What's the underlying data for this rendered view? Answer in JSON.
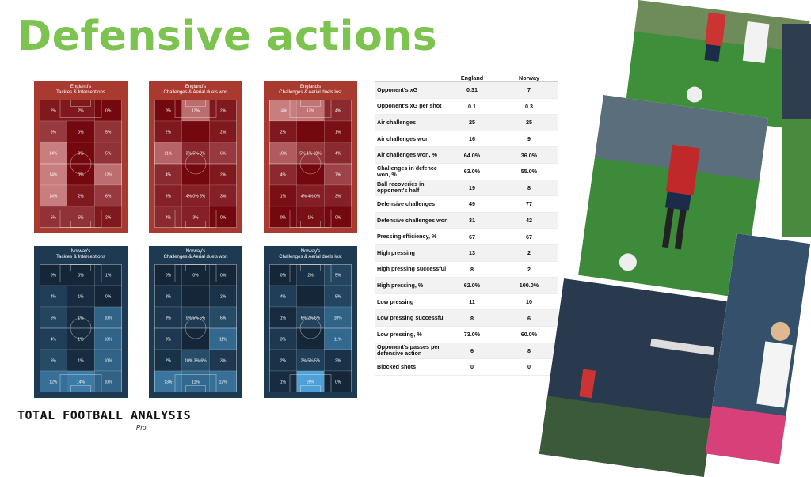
{
  "title": "Defensive actions",
  "panels": {
    "eng1": {
      "title": "England's\nTackles & Interceptions",
      "cells": [
        "2%",
        "2%",
        "0%",
        "6%",
        "0%",
        "5%",
        "14%",
        "0%",
        "5%",
        "14%",
        "0%",
        "12%",
        "14%",
        "2%",
        "6%",
        "5%",
        "5%",
        "2%"
      ]
    },
    "eng2": {
      "title": "England's\nChallenges & Aerial duels won",
      "cells": [
        "0%",
        "12%",
        "2%",
        "2%",
        "",
        "2%",
        "11%",
        "3% 5% 3%",
        "6%",
        "4%",
        "",
        "2%",
        "3%",
        "4% 0% 5%",
        "3%",
        "4%",
        "3%",
        "0%"
      ]
    },
    "eng3": {
      "title": "England's\nChallenges & Aerial duels lost",
      "cells": [
        "14%",
        "13%",
        "4%",
        "2%",
        "",
        "1%",
        "10%",
        "5% 1% 10%",
        "4%",
        "4%",
        "",
        "7%",
        "1%",
        "4% 4% 0%",
        "3%",
        "0%",
        "1%",
        "0%"
      ]
    },
    "nor1": {
      "title": "Norway's\nTackles & Interceptions",
      "cells": [
        "0%",
        "0%",
        "1%",
        "4%",
        "1%",
        "0%",
        "5%",
        "1%",
        "10%",
        "4%",
        "1%",
        "10%",
        "6%",
        "1%",
        "10%",
        "12%",
        "14%",
        "10%"
      ]
    },
    "nor2": {
      "title": "Norway's\nChallenges & Aerial duels won",
      "cells": [
        "0%",
        "0%",
        "0%",
        "2%",
        "",
        "2%",
        "3%",
        "0% 5% 5%",
        "6%",
        "3%",
        "",
        "11%",
        "2%",
        "10% 3% 6%",
        "3%",
        "13%",
        "11%",
        "12%"
      ]
    },
    "nor3": {
      "title": "Norway's\nChallenges & Aerial duels lost",
      "cells": [
        "0%",
        "2%",
        "5%",
        "4%",
        "",
        "5%",
        "1%",
        "6% 2% 6%",
        "10%",
        "3%",
        "",
        "11%",
        "2%",
        "2% 5% 5%",
        "2%",
        "1%",
        "20%",
        "0%"
      ]
    }
  },
  "stats": {
    "col_england": "England",
    "col_norway": "Norway",
    "rows": [
      {
        "label": "Opponent's xG",
        "eng": "0.31",
        "nor": "7"
      },
      {
        "label": "Opponent's xG per shot",
        "eng": "0.1",
        "nor": "0.3"
      },
      {
        "label": "Air challenges",
        "eng": "25",
        "nor": "25"
      },
      {
        "label": "Air challenges won",
        "eng": "16",
        "nor": "9"
      },
      {
        "label": "Air challenges won, %",
        "eng": "64.0%",
        "nor": "36.0%"
      },
      {
        "label": "Challenges in defence won, %",
        "eng": "63.0%",
        "nor": "55.0%"
      },
      {
        "label": "Ball recoveries in opponent's half",
        "eng": "19",
        "nor": "8"
      },
      {
        "label": "Defensive challenges",
        "eng": "49",
        "nor": "77"
      },
      {
        "label": "Defensive challenges won",
        "eng": "31",
        "nor": "42"
      },
      {
        "label": "Pressing efficiency, %",
        "eng": "67",
        "nor": "67"
      },
      {
        "label": "High pressing",
        "eng": "13",
        "nor": "2"
      },
      {
        "label": "High pressing successful",
        "eng": "8",
        "nor": "2"
      },
      {
        "label": "High pressing, %",
        "eng": "62.0%",
        "nor": "100.0%"
      },
      {
        "label": "Low pressing",
        "eng": "11",
        "nor": "10"
      },
      {
        "label": "Low pressing successful",
        "eng": "8",
        "nor": "6"
      },
      {
        "label": "Low pressing, %",
        "eng": "73.0%",
        "nor": "60.0%"
      },
      {
        "label": "Opponent's passes per defensive action",
        "eng": "6",
        "nor": "8"
      },
      {
        "label": "Blocked shots",
        "eng": "0",
        "nor": "0"
      }
    ]
  },
  "logo": {
    "line1": "TOTAL FOOTBALL ANALYSIS",
    "line2": "Pro"
  },
  "colors": {
    "accent": "#7cc34f",
    "england_panel": "#a83a30",
    "norway_panel": "#1d3a52"
  }
}
